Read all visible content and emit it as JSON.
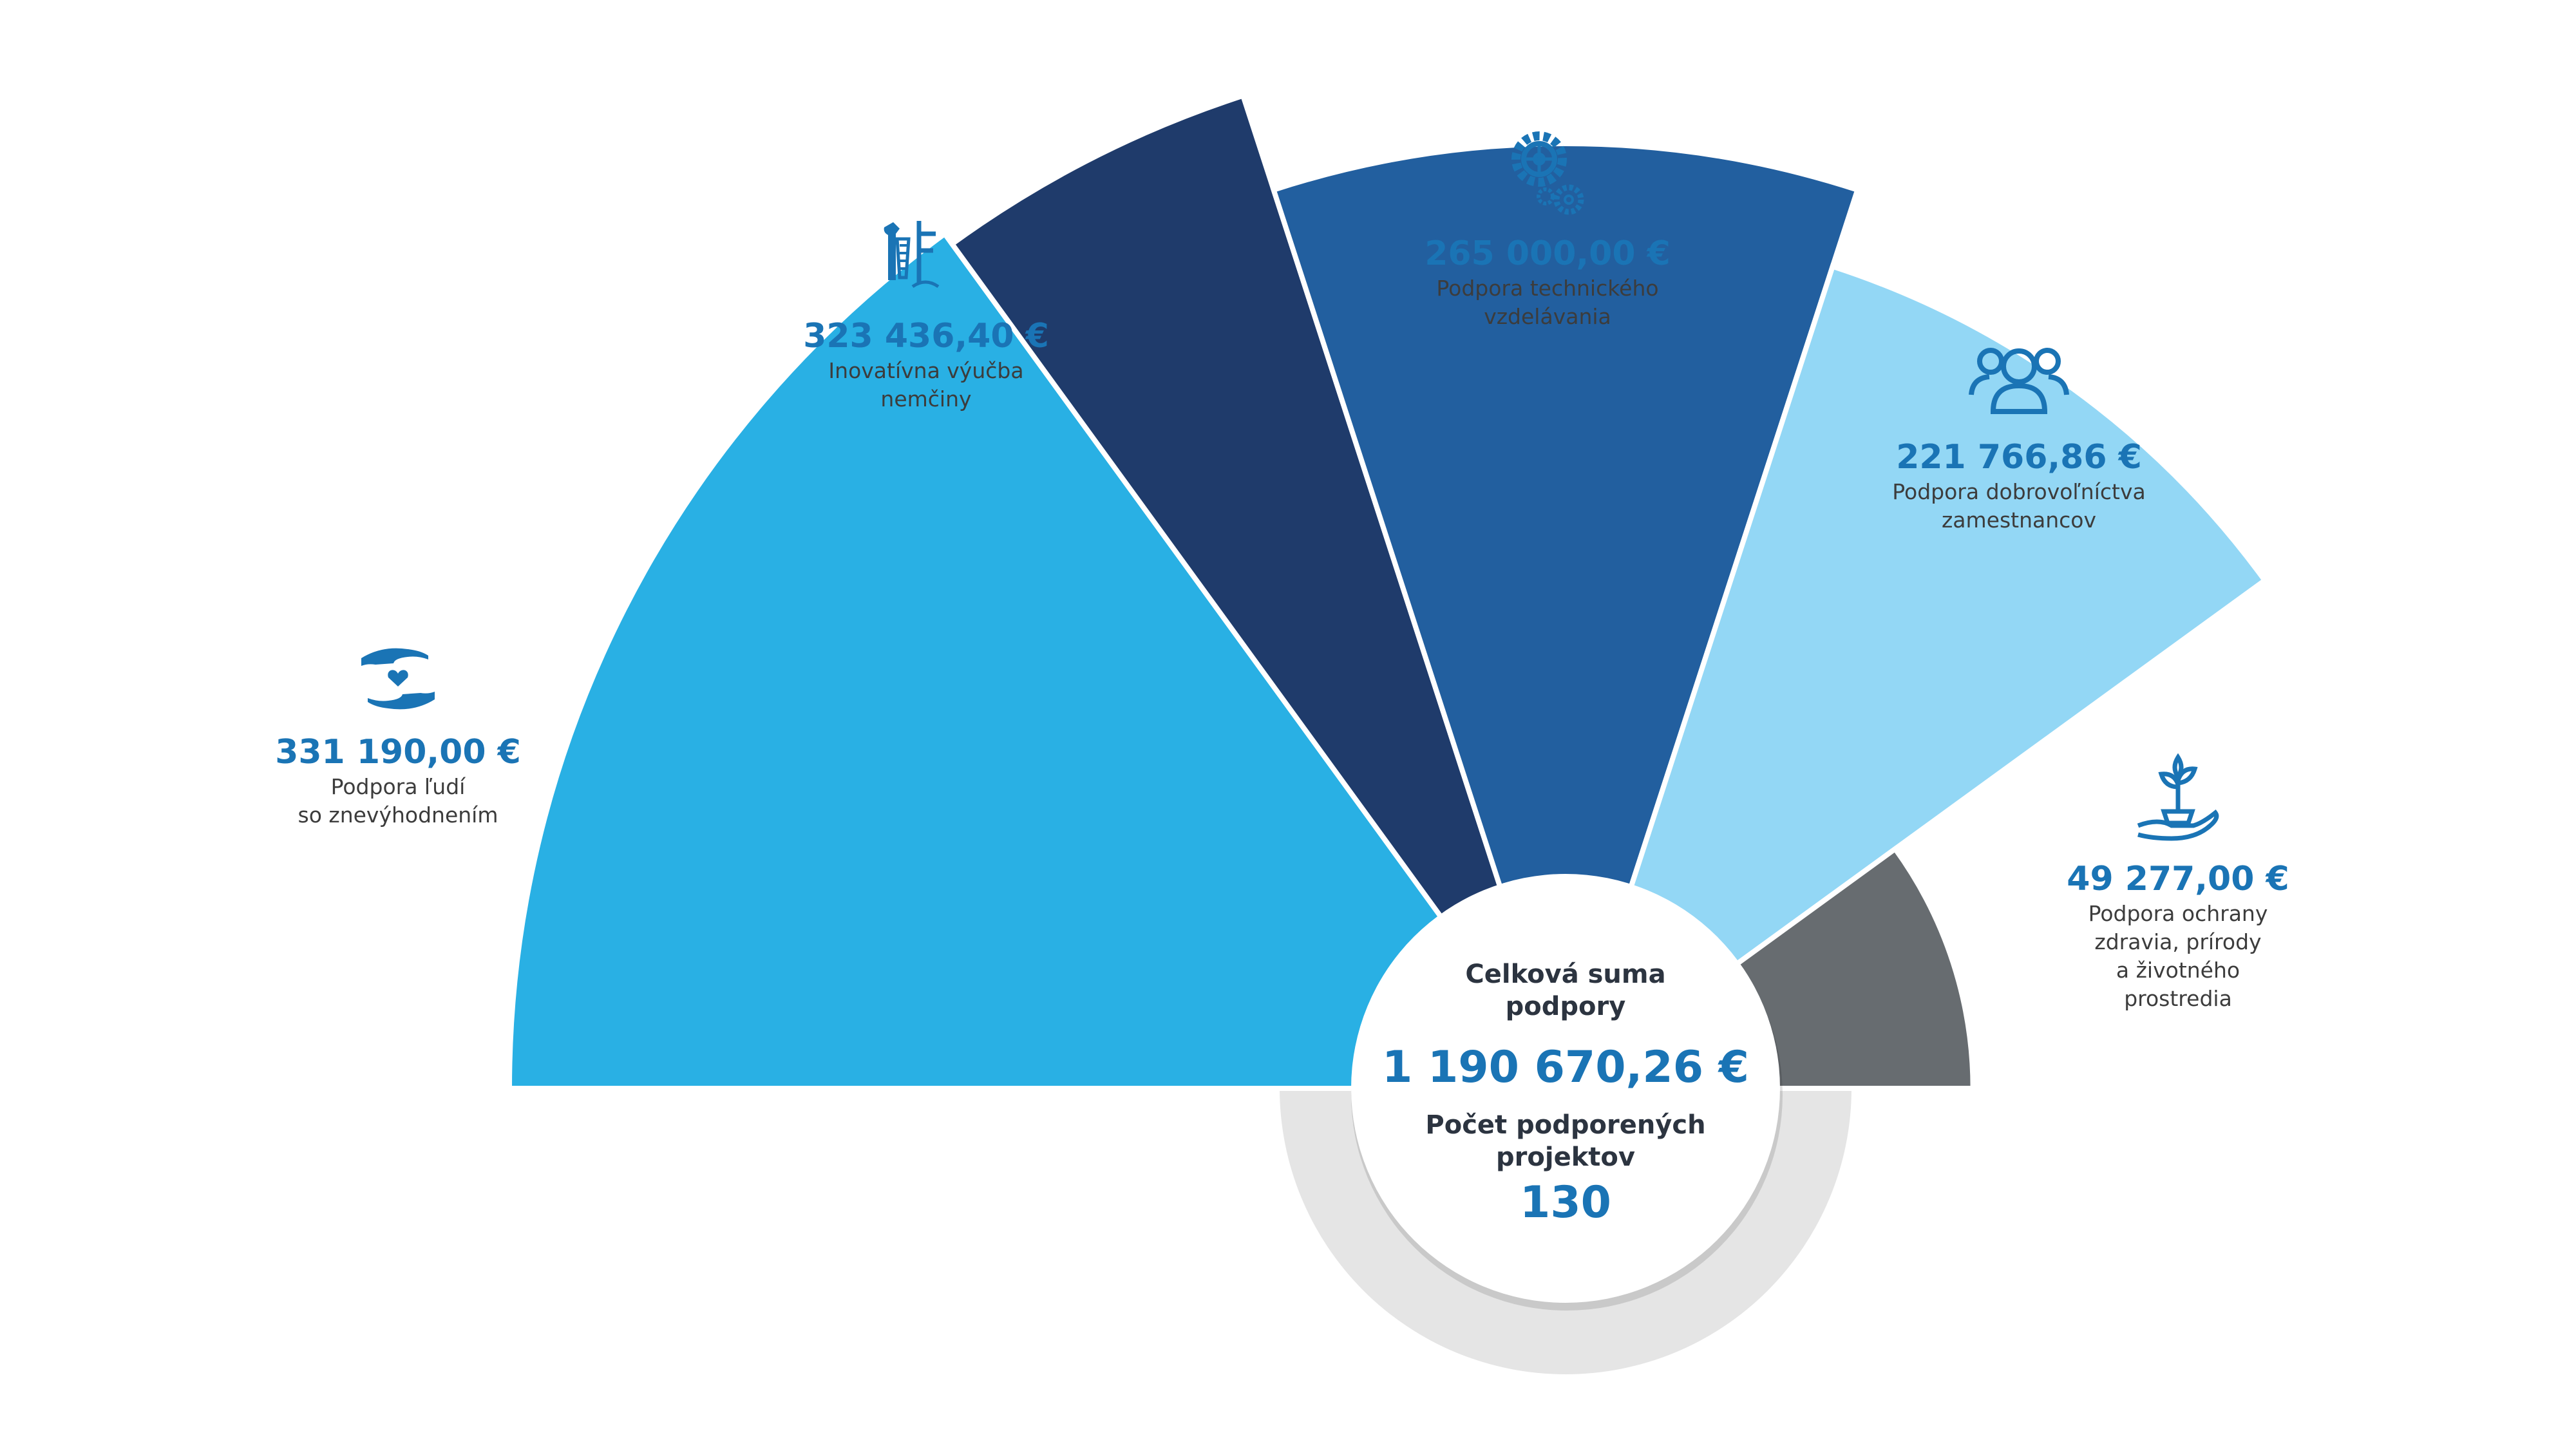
{
  "chart_data": {
    "type": "pie",
    "series": [
      {
        "value": 331190.0,
        "amount_label": "331 190,00 €",
        "label_lines": [
          "Podpora ľudí",
          "so znevýhodnením"
        ],
        "color": "#29b0e4",
        "icon": "hands-heart-icon"
      },
      {
        "value": 323436.4,
        "amount_label": "323 436,40 €",
        "label_lines": [
          "Inovatívna výučba",
          "nemčiny"
        ],
        "color": "#1f3b6b",
        "icon": "eagle-emblem-icon"
      },
      {
        "value": 265000.0,
        "amount_label": "265 000,00 €",
        "label_lines": [
          "Podpora technického",
          "vzdelávania"
        ],
        "color": "#225f9f",
        "icon": "gears-icon"
      },
      {
        "value": 221766.86,
        "amount_label": "221 766,86 €",
        "label_lines": [
          "Podpora dobrovoľníctva",
          "zamestnancov"
        ],
        "color": "#93d7f5",
        "icon": "people-group-icon"
      },
      {
        "value": 49277.0,
        "amount_label": "49 277,00 €",
        "label_lines": [
          "Podpora ochrany",
          "zdravia, prírody",
          "a životného",
          "prostredia"
        ],
        "color": "#676c70",
        "icon": "hand-plant-icon"
      }
    ]
  },
  "center": {
    "total_heading_lines": [
      "Celková suma",
      "podpory"
    ],
    "total_amount": "1 190 670,26 €",
    "projects_heading_lines": [
      "Počet podporených",
      "projektov"
    ],
    "projects_count": "130",
    "disc_color": "#ffffff",
    "ring_color": "#c8c8c8"
  }
}
